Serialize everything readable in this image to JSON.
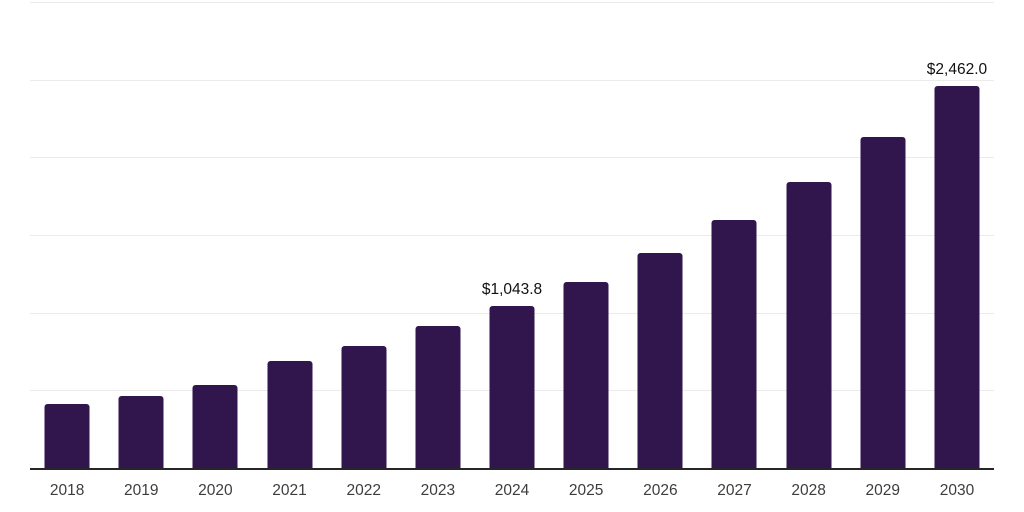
{
  "chart_data": {
    "type": "bar",
    "title": "",
    "xlabel": "",
    "ylabel": "",
    "categories": [
      "2018",
      "2019",
      "2020",
      "2021",
      "2022",
      "2023",
      "2024",
      "2025",
      "2026",
      "2027",
      "2028",
      "2029",
      "2030"
    ],
    "values": [
      410,
      466,
      532,
      692,
      788,
      912,
      1043.8,
      1200,
      1382,
      1596,
      1844,
      2130,
      2462
    ],
    "data_labels": {
      "2024": "$1,043.8",
      "2030": "$2,462.0"
    },
    "ylim": [
      0,
      3000
    ],
    "grid_step": 500,
    "grid": "horizontal",
    "legend_position": "none",
    "colors": {
      "bar": "#31164e",
      "axis_line": "#262626",
      "gridline": "#ebebeb",
      "tick_label": "#3d3d3d",
      "data_label": "#111111"
    }
  }
}
